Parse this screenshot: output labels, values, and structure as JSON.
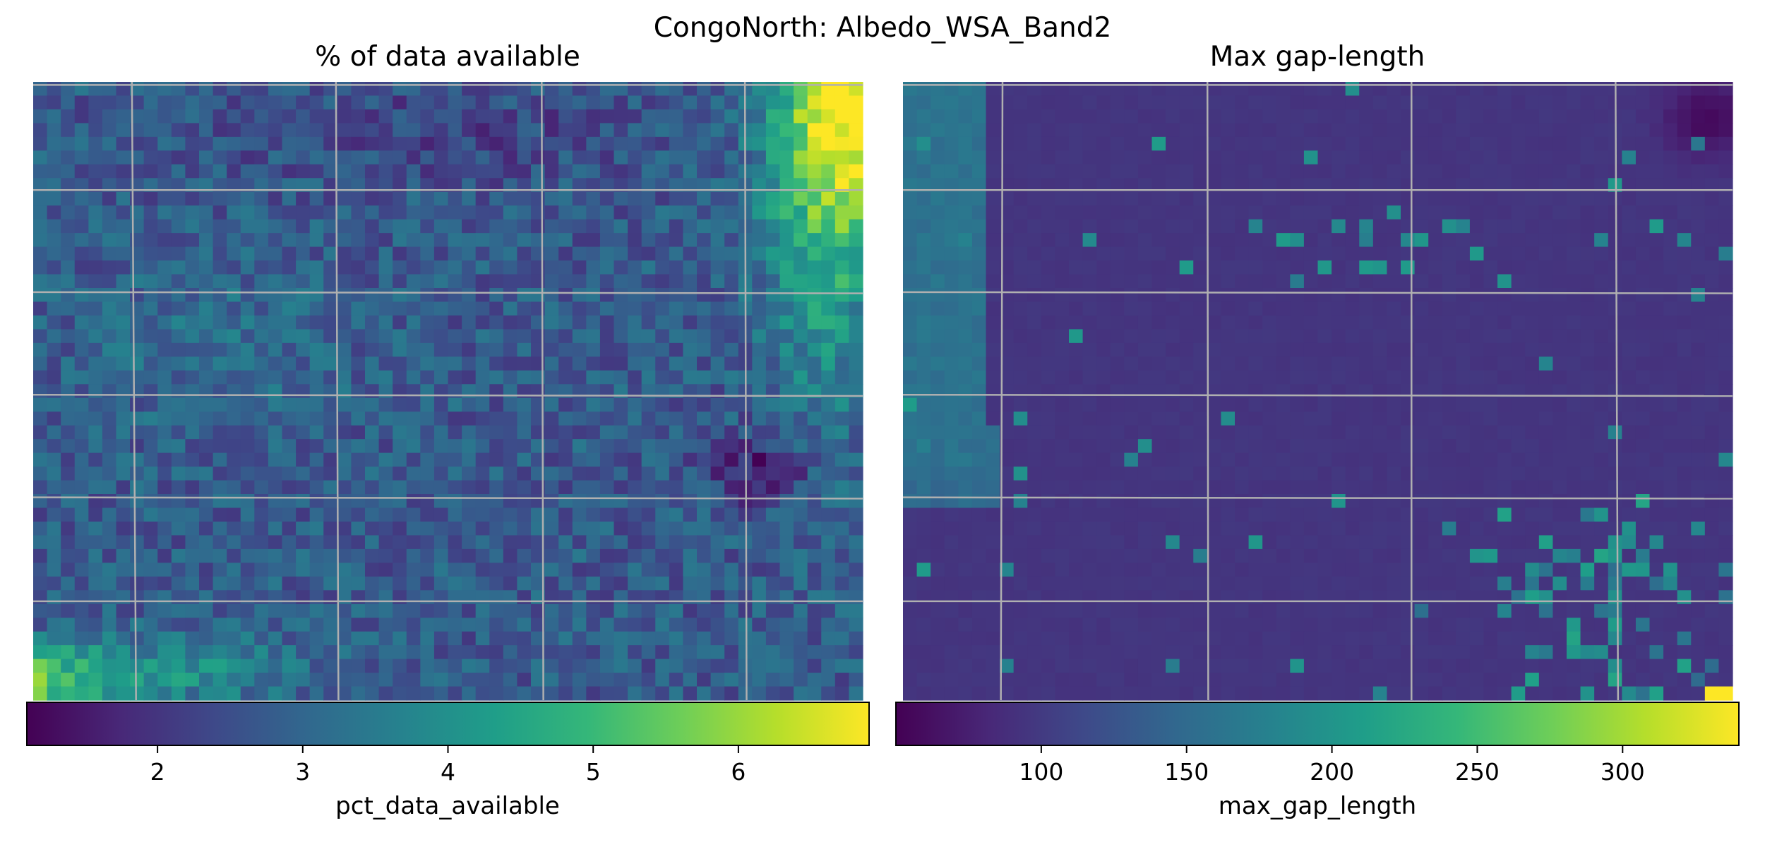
{
  "figure": {
    "title": "CongoNorth: Albedo_WSA_Band2"
  },
  "colors": {
    "viridis": [
      "#440154",
      "#482878",
      "#3e4989",
      "#31688e",
      "#26828e",
      "#1f9e89",
      "#35b779",
      "#6ece58",
      "#b5de2b",
      "#fde725"
    ],
    "grid": "#b0b0b0",
    "frame": "#000000"
  },
  "chart_data": [
    {
      "type": "heatmap",
      "title": "% of data available",
      "colorbar": {
        "label": "pct_data_available",
        "range": [
          1.1,
          6.9
        ],
        "ticks": [
          2,
          3,
          4,
          5,
          6
        ],
        "tick_labels": [
          "2",
          "3",
          "4",
          "5",
          "6"
        ]
      },
      "grid": true,
      "grid_size": [
        60,
        45
      ],
      "field_summary": {
        "typical_value": 2.8,
        "high_regions": [
          "top-right corner (up to ~6.8)",
          "bottom-left corner (~5.5)"
        ],
        "low_regions": [
          "center-right (~1.3)",
          "upper band near top center (~1.8)"
        ]
      }
    },
    {
      "type": "heatmap",
      "title": "Max gap-length",
      "colorbar": {
        "label": "max_gap_length",
        "range": [
          50,
          340
        ],
        "ticks": [
          100,
          150,
          200,
          250,
          300
        ],
        "tick_labels": [
          "100",
          "150",
          "200",
          "250",
          "300"
        ]
      },
      "grid": true,
      "grid_size": [
        60,
        45
      ],
      "field_summary": {
        "typical_value": 95,
        "high_regions": [
          "left edge band (~155)",
          "bottom-right patches (~170-220)",
          "bottom-right corner pixel (~340)"
        ],
        "low_regions": [
          "top-right corner (~55)"
        ]
      }
    }
  ]
}
